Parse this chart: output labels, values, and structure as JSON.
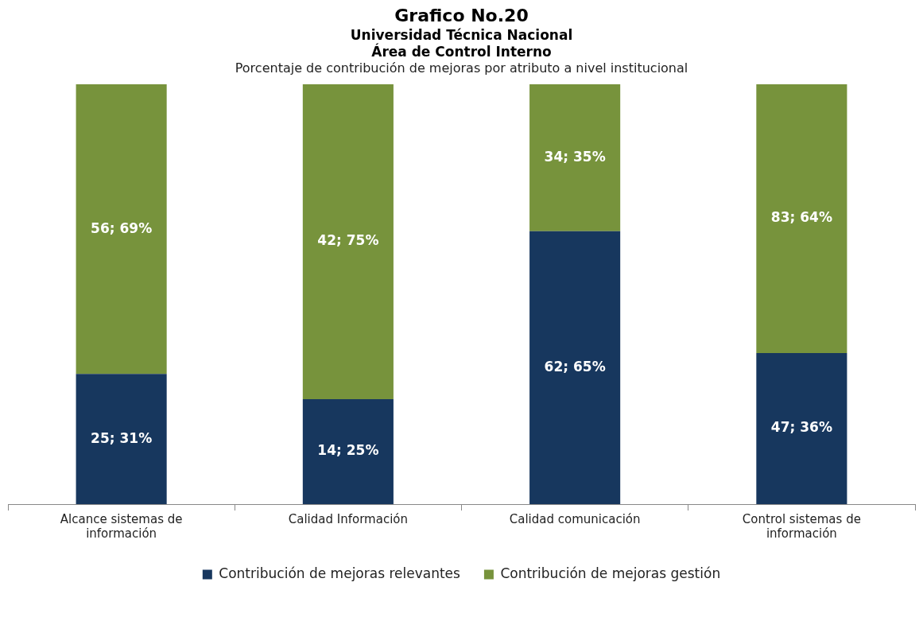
{
  "chart_data": {
    "type": "bar",
    "title": "Grafico No.20\nUniversidad Técnica Nacional\nÁrea de Control Interno",
    "subtitle": "Porcentaje de contribución de mejoras por atributo a nivel institucional",
    "categories": [
      "Alcance sistemas de información",
      "Calidad Información",
      "Calidad comunicación",
      "Control sistemas de información"
    ],
    "series": [
      {
        "name": "Contribución de mejoras relevantes",
        "color": "#17375e",
        "values": [
          31,
          25,
          65,
          36
        ],
        "value_labels": [
          "25; 31%",
          "14; 25%",
          "62; 65%",
          "47; 36%"
        ]
      },
      {
        "name": "Contribución de mejoras gestión",
        "color": "#77933c",
        "values": [
          69,
          75,
          35,
          64
        ],
        "value_labels": [
          "56; 69%",
          "42; 75%",
          "34; 35%",
          "83; 64%"
        ]
      }
    ],
    "stacked": true,
    "ylim": [
      0,
      100
    ],
    "tick_labels": "x",
    "grid": false,
    "legend": "bottom"
  }
}
